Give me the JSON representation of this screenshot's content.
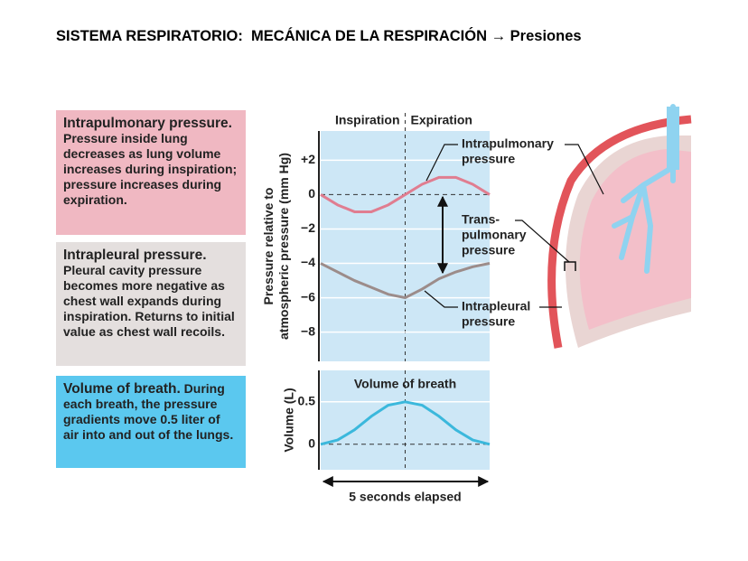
{
  "title": "SISTEMA RESPIRATORIO:  MECÁNICA DE LA RESPIRACIÓN → Presiones",
  "panels": [
    {
      "heading": "Intrapulmonary pressure.",
      "text": "Pressure inside lung decreases as lung volume increases during inspiration; pressure increases during expiration."
    },
    {
      "heading": "Intrapleural pressure.",
      "text": "Pleural cavity pressure becomes more negative as chest wall expands during inspiration. Returns to initial value as chest wall recoils."
    },
    {
      "heading": "Volume of breath.",
      "text": "During each breath, the pressure gradients move 0.5 liter of air into and out of the lungs."
    }
  ],
  "chart_data": [
    {
      "type": "line",
      "ylabel": [
        "Pressure relative to",
        "atmospheric pressure (mm Hg)"
      ],
      "phases": [
        "Inspiration",
        "Expiration"
      ],
      "x": [
        0,
        0.5,
        1,
        1.5,
        2,
        2.5,
        3,
        3.5,
        4,
        4.5,
        5
      ],
      "xlim": [
        0,
        5
      ],
      "ylim": [
        -9.7,
        3.7
      ],
      "yticks": [
        {
          "value": 2,
          "label": "+2"
        },
        0,
        {
          "value": -2,
          "label": "−2"
        },
        {
          "value": -4,
          "label": "−4"
        },
        {
          "value": -6,
          "label": "−6"
        },
        {
          "value": -8,
          "label": "−8"
        }
      ],
      "grid": true,
      "series": [
        {
          "name": [
            "Intrapulmonary",
            "pressure"
          ],
          "color": "#e07d90",
          "values": [
            0,
            -0.6,
            -1,
            -1,
            -0.6,
            0,
            0.6,
            1,
            1,
            0.6,
            0
          ]
        },
        {
          "name": [
            "Intrapleural",
            "pressure"
          ],
          "color": "#9c8c8a",
          "values": [
            -4,
            -4.5,
            -5,
            -5.4,
            -5.8,
            -6,
            -5.5,
            -4.9,
            -4.5,
            -4.2,
            -4
          ]
        }
      ],
      "annotation": [
        "Trans-",
        "pulmonary",
        "pressure"
      ]
    },
    {
      "type": "line",
      "title": "Volume of breath",
      "ylabel": [
        "Volume (L)"
      ],
      "xlabel": "5 seconds elapsed",
      "x": [
        0,
        0.5,
        1,
        1.5,
        2,
        2.5,
        3,
        3.5,
        4,
        4.5,
        5
      ],
      "xlim": [
        0,
        5
      ],
      "ylim": [
        -0.3,
        0.87
      ],
      "yticks": [
        0.5,
        0
      ],
      "grid": true,
      "series": [
        {
          "name": "Volume of breath",
          "color": "#3bb8dc",
          "values": [
            0,
            0.05,
            0.17,
            0.33,
            0.46,
            0.5,
            0.46,
            0.33,
            0.17,
            0.05,
            0
          ]
        }
      ]
    }
  ]
}
